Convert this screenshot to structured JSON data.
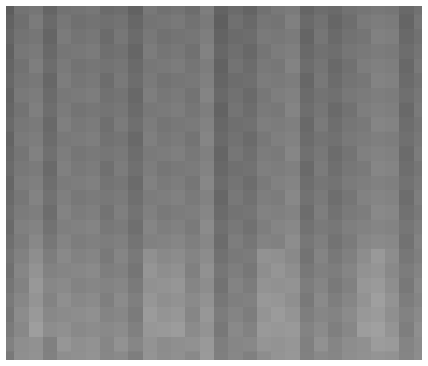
{
  "chart_data": {
    "type": "heatmap",
    "tick_labels": false,
    "value_range": [
      0,
      255
    ],
    "cells": [
      [
        93,
        115,
        118,
        101,
        114,
        116,
        119,
        107,
        110,
        98,
        120,
        113,
        116,
        109,
        126,
        99,
        107,
        100,
        113,
        120,
        123,
        101,
        109,
        106,
        114,
        117,
        120,
        118,
        105,
        113
      ],
      [
        98,
        111,
        123,
        106,
        119,
        112,
        115,
        112,
        115,
        103,
        116,
        118,
        121,
        114,
        122,
        95,
        112,
        105,
        118,
        116,
        128,
        106,
        114,
        102,
        110,
        122,
        125,
        123,
        101,
        118
      ],
      [
        102,
        115,
        118,
        101,
        123,
        116,
        119,
        107,
        119,
        107,
        120,
        113,
        116,
        118,
        126,
        99,
        107,
        109,
        122,
        120,
        123,
        101,
        118,
        106,
        114,
        117,
        129,
        127,
        105,
        113
      ],
      [
        97,
        119,
        122,
        105,
        118,
        120,
        123,
        111,
        114,
        102,
        124,
        117,
        120,
        113,
        130,
        103,
        111,
        104,
        117,
        124,
        127,
        105,
        113,
        110,
        118,
        121,
        124,
        122,
        109,
        117
      ],
      [
        101,
        114,
        126,
        109,
        122,
        115,
        118,
        115,
        118,
        106,
        119,
        121,
        124,
        117,
        125,
        98,
        115,
        108,
        121,
        119,
        131,
        109,
        117,
        105,
        113,
        125,
        128,
        126,
        104,
        121
      ],
      [
        104,
        117,
        120,
        103,
        125,
        118,
        121,
        109,
        121,
        109,
        122,
        115,
        118,
        120,
        128,
        101,
        109,
        111,
        124,
        122,
        125,
        103,
        120,
        108,
        116,
        119,
        131,
        129,
        107,
        115
      ],
      [
        99,
        121,
        124,
        107,
        120,
        122,
        125,
        113,
        116,
        104,
        126,
        119,
        122,
        115,
        132,
        105,
        113,
        106,
        119,
        126,
        129,
        107,
        115,
        112,
        120,
        123,
        126,
        124,
        111,
        119
      ],
      [
        102,
        115,
        127,
        110,
        123,
        116,
        119,
        116,
        119,
        107,
        120,
        122,
        125,
        118,
        126,
        99,
        116,
        109,
        122,
        120,
        132,
        110,
        118,
        106,
        114,
        126,
        129,
        127,
        105,
        122
      ],
      [
        106,
        119,
        122,
        105,
        127,
        120,
        123,
        111,
        123,
        111,
        124,
        117,
        120,
        122,
        130,
        103,
        111,
        113,
        126,
        124,
        127,
        105,
        122,
        110,
        118,
        121,
        133,
        131,
        109,
        117
      ],
      [
        100,
        122,
        125,
        108,
        121,
        123,
        126,
        114,
        117,
        105,
        127,
        120,
        123,
        116,
        133,
        106,
        114,
        107,
        120,
        127,
        130,
        108,
        116,
        113,
        121,
        124,
        127,
        125,
        112,
        120
      ],
      [
        104,
        117,
        129,
        112,
        125,
        118,
        121,
        118,
        121,
        109,
        122,
        124,
        127,
        120,
        128,
        101,
        118,
        111,
        124,
        122,
        134,
        112,
        120,
        108,
        116,
        128,
        131,
        129,
        107,
        124
      ],
      [
        107,
        120,
        123,
        106,
        128,
        121,
        124,
        112,
        124,
        112,
        125,
        118,
        121,
        123,
        131,
        104,
        112,
        114,
        127,
        125,
        128,
        106,
        123,
        111,
        119,
        122,
        134,
        132,
        110,
        118
      ],
      [
        102,
        124,
        127,
        110,
        123,
        125,
        128,
        116,
        119,
        107,
        129,
        122,
        125,
        118,
        135,
        108,
        116,
        109,
        122,
        129,
        132,
        110,
        118,
        115,
        123,
        126,
        129,
        127,
        114,
        122
      ],
      [
        106,
        119,
        131,
        114,
        127,
        120,
        123,
        120,
        123,
        111,
        124,
        126,
        129,
        122,
        130,
        103,
        120,
        113,
        126,
        124,
        136,
        114,
        122,
        110,
        118,
        130,
        133,
        131,
        109,
        126
      ],
      [
        110,
        123,
        126,
        109,
        131,
        124,
        127,
        115,
        127,
        115,
        128,
        121,
        124,
        126,
        134,
        107,
        115,
        117,
        130,
        128,
        131,
        109,
        126,
        114,
        122,
        125,
        137,
        135,
        113,
        121
      ],
      [
        106,
        128,
        131,
        114,
        127,
        129,
        132,
        120,
        123,
        111,
        133,
        126,
        129,
        122,
        139,
        112,
        120,
        113,
        126,
        133,
        136,
        114,
        122,
        119,
        127,
        130,
        133,
        131,
        118,
        126
      ],
      [
        111,
        124,
        136,
        119,
        132,
        125,
        128,
        125,
        128,
        116,
        129,
        131,
        134,
        127,
        135,
        108,
        125,
        118,
        131,
        129,
        141,
        119,
        127,
        115,
        123,
        135,
        138,
        136,
        114,
        131
      ],
      [
        116,
        129,
        142,
        125,
        137,
        130,
        133,
        121,
        133,
        121,
        144,
        137,
        140,
        132,
        140,
        113,
        121,
        123,
        146,
        144,
        137,
        115,
        132,
        120,
        128,
        141,
        153,
        141,
        119,
        127
      ],
      [
        112,
        134,
        147,
        130,
        133,
        135,
        138,
        126,
        129,
        117,
        149,
        142,
        145,
        128,
        145,
        118,
        126,
        119,
        142,
        149,
        142,
        120,
        128,
        125,
        133,
        146,
        149,
        137,
        124,
        132
      ],
      [
        117,
        130,
        152,
        135,
        138,
        131,
        134,
        131,
        134,
        122,
        145,
        147,
        150,
        133,
        141,
        114,
        131,
        124,
        147,
        145,
        147,
        125,
        133,
        121,
        129,
        151,
        154,
        142,
        120,
        137
      ],
      [
        122,
        135,
        148,
        131,
        143,
        136,
        139,
        127,
        139,
        127,
        150,
        143,
        146,
        138,
        146,
        119,
        127,
        129,
        152,
        150,
        143,
        121,
        138,
        126,
        134,
        147,
        159,
        147,
        125,
        133
      ],
      [
        118,
        140,
        153,
        136,
        139,
        141,
        144,
        132,
        135,
        123,
        155,
        148,
        151,
        134,
        151,
        124,
        132,
        125,
        148,
        155,
        148,
        126,
        134,
        131,
        139,
        152,
        155,
        143,
        130,
        138
      ],
      [
        123,
        136,
        158,
        141,
        144,
        137,
        140,
        137,
        140,
        128,
        151,
        153,
        156,
        139,
        147,
        120,
        137,
        130,
        153,
        151,
        153,
        131,
        139,
        127,
        135,
        157,
        160,
        148,
        126,
        143
      ],
      [
        129,
        142,
        145,
        128,
        150,
        143,
        146,
        134,
        146,
        134,
        147,
        140,
        143,
        145,
        153,
        126,
        134,
        136,
        149,
        147,
        150,
        128,
        145,
        133,
        141,
        144,
        156,
        154,
        132,
        140
      ],
      [
        121,
        143,
        146,
        129,
        142,
        144,
        147,
        135,
        138,
        126,
        148,
        141,
        144,
        137,
        154,
        127,
        135,
        128,
        141,
        148,
        151,
        129,
        137,
        134,
        142,
        145,
        148,
        146,
        133,
        141
      ]
    ]
  }
}
